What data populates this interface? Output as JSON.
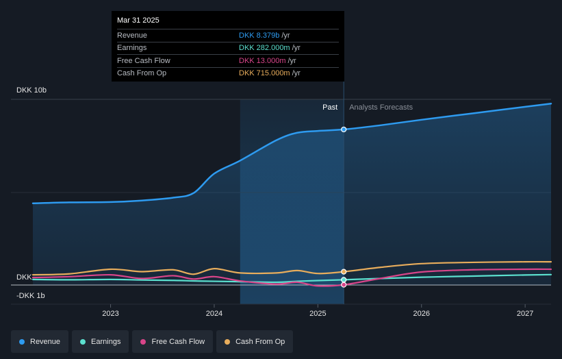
{
  "chart_data": {
    "type": "line",
    "currency_unit": "DKK",
    "y_axis_labels": [
      "DKK 10b",
      "DKK",
      "-DKK 1b"
    ],
    "ylim": [
      -1,
      10
    ],
    "x_ticks": [
      2023,
      2024,
      2025,
      2026,
      2027
    ],
    "xlim": [
      2022.25,
      2027.25
    ],
    "divider_year": 2025.25,
    "past_start_year": 2024.25,
    "past_label": "Past",
    "forecast_label": "Analysts Forecasts",
    "series": [
      {
        "name": "Revenue",
        "color": "#2e9bf0",
        "fill": true,
        "x": [
          2022.25,
          2022.6,
          2023.0,
          2023.3,
          2023.6,
          2023.8,
          2024.0,
          2024.25,
          2024.6,
          2024.8,
          2025.0,
          2025.25,
          2025.6,
          2026.0,
          2026.5,
          2027.0,
          2027.25
        ],
        "values": [
          4.4,
          4.45,
          4.47,
          4.55,
          4.7,
          4.95,
          6.0,
          6.7,
          7.8,
          8.2,
          8.3,
          8.379,
          8.6,
          8.9,
          9.25,
          9.6,
          9.77
        ]
      },
      {
        "name": "Earnings",
        "color": "#5ce0cf",
        "fill": false,
        "x": [
          2022.25,
          2022.6,
          2023.0,
          2023.3,
          2023.6,
          2023.8,
          2024.0,
          2024.25,
          2024.6,
          2024.8,
          2025.0,
          2025.25,
          2025.6,
          2026.0,
          2026.5,
          2027.0,
          2027.25
        ],
        "values": [
          0.3,
          0.28,
          0.3,
          0.27,
          0.25,
          0.22,
          0.2,
          0.18,
          0.15,
          0.2,
          0.24,
          0.282,
          0.35,
          0.42,
          0.48,
          0.54,
          0.56
        ]
      },
      {
        "name": "Free Cash Flow",
        "color": "#d9458a",
        "fill": false,
        "x": [
          2022.25,
          2022.6,
          2023.0,
          2023.3,
          2023.6,
          2023.8,
          2024.0,
          2024.25,
          2024.6,
          2024.8,
          2025.0,
          2025.25,
          2025.6,
          2026.0,
          2026.5,
          2027.0,
          2027.25
        ],
        "values": [
          0.4,
          0.45,
          0.55,
          0.35,
          0.5,
          0.32,
          0.45,
          0.22,
          0.05,
          0.15,
          -0.05,
          0.013,
          0.35,
          0.7,
          0.82,
          0.85,
          0.85
        ]
      },
      {
        "name": "Cash From Op",
        "color": "#e8ad5c",
        "fill": false,
        "x": [
          2022.25,
          2022.6,
          2023.0,
          2023.3,
          2023.6,
          2023.8,
          2024.0,
          2024.25,
          2024.6,
          2024.8,
          2025.0,
          2025.25,
          2025.6,
          2026.0,
          2026.5,
          2027.0,
          2027.25
        ],
        "values": [
          0.55,
          0.6,
          0.85,
          0.72,
          0.82,
          0.58,
          0.88,
          0.65,
          0.65,
          0.78,
          0.62,
          0.715,
          0.95,
          1.15,
          1.22,
          1.25,
          1.25
        ]
      }
    ]
  },
  "tooltip": {
    "date": "Mar 31 2025",
    "rows": [
      {
        "name": "Revenue",
        "value": "DKK 8.379b",
        "unit": "/yr",
        "color": "#2e9bf0"
      },
      {
        "name": "Earnings",
        "value": "DKK 282.000m",
        "unit": "/yr",
        "color": "#5ce0cf"
      },
      {
        "name": "Free Cash Flow",
        "value": "DKK 13.000m",
        "unit": "/yr",
        "color": "#d9458a"
      },
      {
        "name": "Cash From Op",
        "value": "DKK 715.000m",
        "unit": "/yr",
        "color": "#e8ad5c"
      }
    ]
  },
  "legend": [
    {
      "label": "Revenue",
      "color": "#2e9bf0"
    },
    {
      "label": "Earnings",
      "color": "#5ce0cf"
    },
    {
      "label": "Free Cash Flow",
      "color": "#d9458a"
    },
    {
      "label": "Cash From Op",
      "color": "#e8ad5c"
    }
  ]
}
